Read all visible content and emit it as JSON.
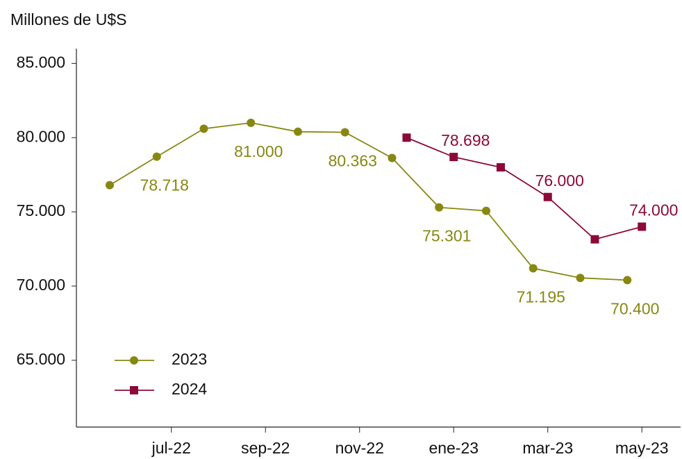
{
  "chart_data": {
    "type": "line",
    "title": "Millones de U$S",
    "categories": [
      null,
      "jul-22",
      null,
      "sep-22",
      null,
      "nov-22",
      null,
      "ene-23",
      null,
      "mar-23",
      null,
      "may-23"
    ],
    "series": [
      {
        "name": "2023",
        "color": "#878712",
        "marker": "circle",
        "values": [
          76800,
          78718,
          80600,
          81000,
          80400,
          80363,
          78630,
          75301,
          75070,
          71195,
          70550,
          70400
        ],
        "value_labels": [
          null,
          "78.718",
          null,
          "81.000",
          null,
          "80.363",
          null,
          "75.301",
          null,
          "71.195",
          null,
          "70.400"
        ]
      },
      {
        "name": "2024",
        "color": "#8b0a3a",
        "marker": "square",
        "values": [
          null,
          null,
          null,
          null,
          null,
          null,
          80000,
          78698,
          78000,
          76000,
          73150,
          74000
        ],
        "value_labels": [
          null,
          null,
          null,
          null,
          null,
          null,
          null,
          "78.698",
          null,
          "76.000",
          null,
          "74.000"
        ]
      }
    ],
    "ylim": [
      60500,
      86000
    ],
    "yticks": [
      {
        "value": 65000,
        "label": "65.000"
      },
      {
        "value": 70000,
        "label": "70.000"
      },
      {
        "value": 75000,
        "label": "75.000"
      },
      {
        "value": 80000,
        "label": "80.000"
      },
      {
        "value": 85000,
        "label": "85.000"
      }
    ],
    "legend": "lower left",
    "grid": false
  }
}
